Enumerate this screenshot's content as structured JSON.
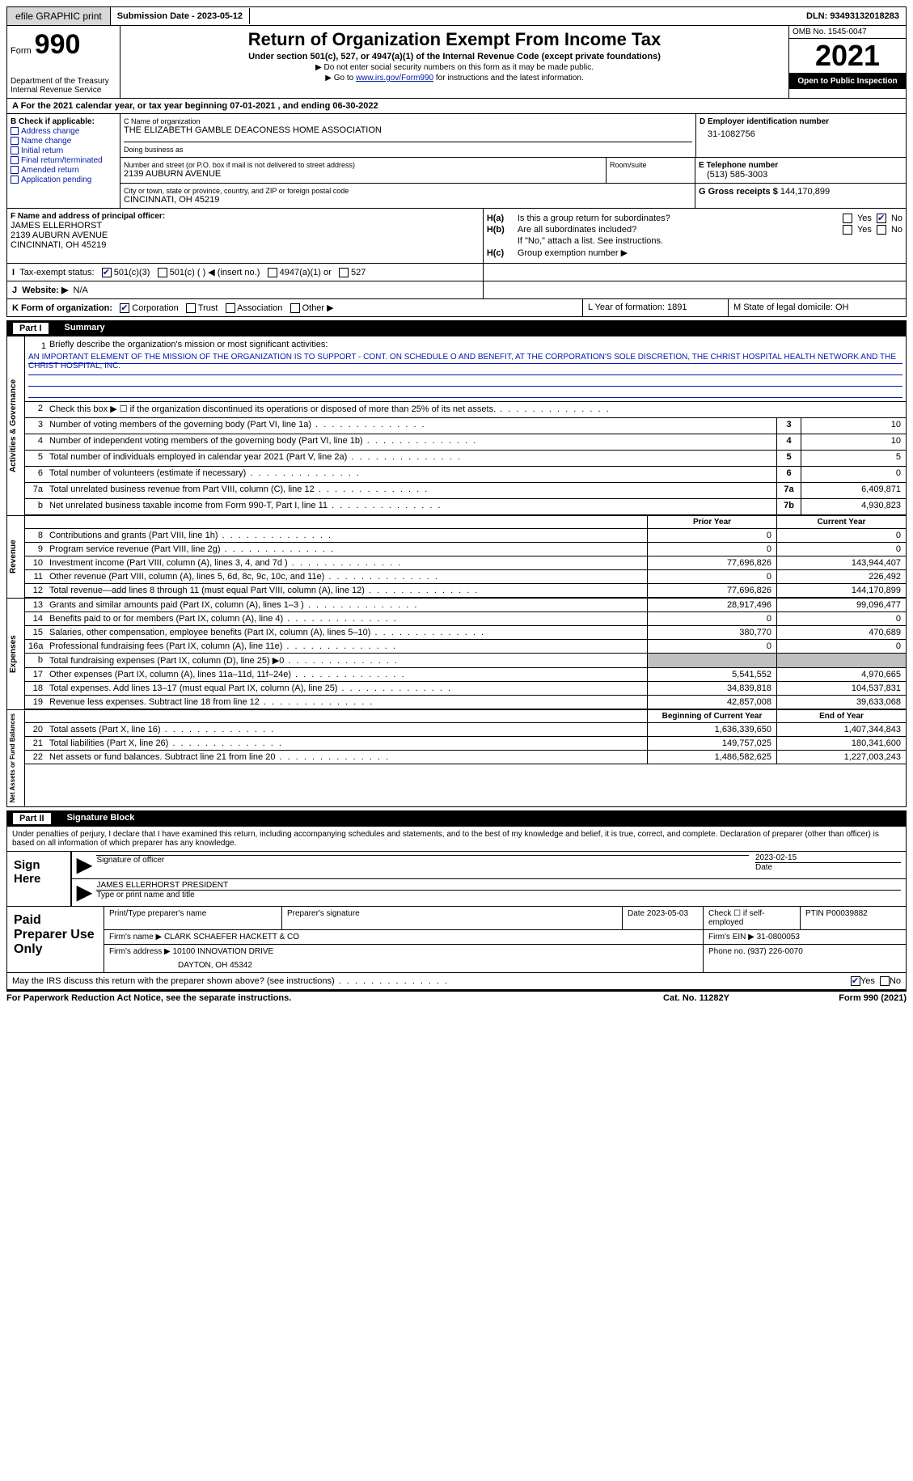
{
  "topbar": {
    "efile": "efile GRAPHIC print",
    "sub_label": "Submission Date - 2023-05-12",
    "dln": "DLN: 93493132018283"
  },
  "header": {
    "form_word": "Form",
    "form_num": "990",
    "dept": "Department of the Treasury Internal Revenue Service",
    "title": "Return of Organization Exempt From Income Tax",
    "subtitle": "Under section 501(c), 527, or 4947(a)(1) of the Internal Revenue Code (except private foundations)",
    "note1": "▶ Do not enter social security numbers on this form as it may be made public.",
    "note2_prefix": "▶ Go to ",
    "note2_link": "www.irs.gov/Form990",
    "note2_suffix": " for instructions and the latest information.",
    "omb": "OMB No. 1545-0047",
    "year": "2021",
    "open": "Open to Public Inspection"
  },
  "period": "A  For the 2021 calendar year, or tax year beginning 07-01-2021   , and ending 06-30-2022",
  "colB": {
    "title": "B Check if applicable:",
    "items": [
      "Address change",
      "Name change",
      "Initial return",
      "Final return/terminated",
      "Amended return",
      "Application pending"
    ]
  },
  "org": {
    "name_lbl": "C Name of organization",
    "name": "THE ELIZABETH GAMBLE DEACONESS HOME ASSOCIATION",
    "dba_lbl": "Doing business as",
    "addr_lbl": "Number and street (or P.O. box if mail is not delivered to street address)",
    "addr": "2139 AUBURN AVENUE",
    "room_lbl": "Room/suite",
    "city_lbl": "City or town, state or province, country, and ZIP or foreign postal code",
    "city": "CINCINNATI, OH  45219",
    "ein_lbl": "D Employer identification number",
    "ein": "31-1082756",
    "tel_lbl": "E Telephone number",
    "tel": "(513) 585-3003",
    "gross_lbl": "G Gross receipts $",
    "gross": "144,170,899"
  },
  "officer": {
    "lbl": "F Name and address of principal officer:",
    "name": "JAMES ELLERHORST",
    "addr1": "2139 AUBURN AVENUE",
    "addr2": "CINCINNATI, OH  45219"
  },
  "H": {
    "a": "Is this a group return for subordinates?",
    "b": "Are all subordinates included?",
    "note": "If \"No,\" attach a list. See instructions.",
    "c": "Group exemption number ▶"
  },
  "tax_status": "Tax-exempt status:",
  "status_opts": [
    "501(c)(3)",
    "501(c) (  ) ◀ (insert no.)",
    "4947(a)(1) or",
    "527"
  ],
  "website_lbl": "Website: ▶",
  "website_val": "N/A",
  "K": {
    "lbl": "K Form of organization:",
    "opts": [
      "Corporation",
      "Trust",
      "Association",
      "Other ▶"
    ],
    "L": "L Year of formation: 1891",
    "M": "M State of legal domicile: OH"
  },
  "part1": {
    "num": "Part I",
    "title": "Summary"
  },
  "mission": {
    "lbl": "Briefly describe the organization's mission or most significant activities:",
    "text": "AN IMPORTANT ELEMENT OF THE MISSION OF THE ORGANIZATION IS TO SUPPORT - CONT. ON SCHEDULE O AND BENEFIT, AT THE CORPORATION'S SOLE DISCRETION, THE CHRIST HOSPITAL HEALTH NETWORK AND THE CHRIST HOSPITAL, INC."
  },
  "gov_rows": [
    {
      "n": "2",
      "label": "Check this box ▶ ☐  if the organization discontinued its operations or disposed of more than 25% of its net assets.",
      "box": "",
      "val": ""
    },
    {
      "n": "3",
      "label": "Number of voting members of the governing body (Part VI, line 1a)",
      "box": "3",
      "val": "10"
    },
    {
      "n": "4",
      "label": "Number of independent voting members of the governing body (Part VI, line 1b)",
      "box": "4",
      "val": "10"
    },
    {
      "n": "5",
      "label": "Total number of individuals employed in calendar year 2021 (Part V, line 2a)",
      "box": "5",
      "val": "5"
    },
    {
      "n": "6",
      "label": "Total number of volunteers (estimate if necessary)",
      "box": "6",
      "val": "0"
    },
    {
      "n": "7a",
      "label": "Total unrelated business revenue from Part VIII, column (C), line 12",
      "box": "7a",
      "val": "6,409,871"
    },
    {
      "n": " b",
      "label": "Net unrelated business taxable income from Form 990-T, Part I, line 11",
      "box": "7b",
      "val": "4,930,823"
    }
  ],
  "rev_hdr": {
    "prior": "Prior Year",
    "current": "Current Year"
  },
  "revenue": [
    {
      "n": "8",
      "label": "Contributions and grants (Part VIII, line 1h)",
      "p": "0",
      "c": "0"
    },
    {
      "n": "9",
      "label": "Program service revenue (Part VIII, line 2g)",
      "p": "0",
      "c": "0"
    },
    {
      "n": "10",
      "label": "Investment income (Part VIII, column (A), lines 3, 4, and 7d )",
      "p": "77,696,826",
      "c": "143,944,407"
    },
    {
      "n": "11",
      "label": "Other revenue (Part VIII, column (A), lines 5, 6d, 8c, 9c, 10c, and 11e)",
      "p": "0",
      "c": "226,492"
    },
    {
      "n": "12",
      "label": "Total revenue—add lines 8 through 11 (must equal Part VIII, column (A), line 12)",
      "p": "77,696,826",
      "c": "144,170,899"
    }
  ],
  "expenses": [
    {
      "n": "13",
      "label": "Grants and similar amounts paid (Part IX, column (A), lines 1–3 )",
      "p": "28,917,496",
      "c": "99,096,477"
    },
    {
      "n": "14",
      "label": "Benefits paid to or for members (Part IX, column (A), line 4)",
      "p": "0",
      "c": "0"
    },
    {
      "n": "15",
      "label": "Salaries, other compensation, employee benefits (Part IX, column (A), lines 5–10)",
      "p": "380,770",
      "c": "470,689"
    },
    {
      "n": "16a",
      "label": "Professional fundraising fees (Part IX, column (A), line 11e)",
      "p": "0",
      "c": "0"
    },
    {
      "n": "b",
      "label": "Total fundraising expenses (Part IX, column (D), line 25) ▶0",
      "p": "SHADE",
      "c": "SHADE"
    },
    {
      "n": "17",
      "label": "Other expenses (Part IX, column (A), lines 11a–11d, 11f–24e)",
      "p": "5,541,552",
      "c": "4,970,665"
    },
    {
      "n": "18",
      "label": "Total expenses. Add lines 13–17 (must equal Part IX, column (A), line 25)",
      "p": "34,839,818",
      "c": "104,537,831"
    },
    {
      "n": "19",
      "label": "Revenue less expenses. Subtract line 18 from line 12",
      "p": "42,857,008",
      "c": "39,633,068"
    }
  ],
  "net_hdr": {
    "begin": "Beginning of Current Year",
    "end": "End of Year"
  },
  "net": [
    {
      "n": "20",
      "label": "Total assets (Part X, line 16)",
      "p": "1,636,339,650",
      "c": "1,407,344,843"
    },
    {
      "n": "21",
      "label": "Total liabilities (Part X, line 26)",
      "p": "149,757,025",
      "c": "180,341,600"
    },
    {
      "n": "22",
      "label": "Net assets or fund balances. Subtract line 21 from line 20",
      "p": "1,486,582,625",
      "c": "1,227,003,243"
    }
  ],
  "vlabels": {
    "gov": "Activities & Governance",
    "rev": "Revenue",
    "exp": "Expenses",
    "net": "Net Assets or Fund Balances"
  },
  "part2": {
    "num": "Part II",
    "title": "Signature Block"
  },
  "perjury": "Under penalties of perjury, I declare that I have examined this return, including accompanying schedules and statements, and to the best of my knowledge and belief, it is true, correct, and complete. Declaration of preparer (other than officer) is based on all information of which preparer has any knowledge.",
  "sign": {
    "side": "Sign Here",
    "sig_of": "Signature of officer",
    "date": "2023-02-15",
    "date_lbl": "Date",
    "name": "JAMES ELLERHORST  PRESIDENT",
    "name_lbl": "Type or print name and title"
  },
  "prep": {
    "side": "Paid Preparer Use Only",
    "r1": {
      "a": "Print/Type preparer's name",
      "b": "Preparer's signature",
      "c": "Date 2023-05-03",
      "d": "Check ☐ if self-employed",
      "e": "PTIN P00039882"
    },
    "r2": {
      "a": "Firm's name     ▶ CLARK SCHAEFER HACKETT & CO",
      "b": "Firm's EIN ▶ 31-0800053"
    },
    "r3": {
      "a": "Firm's address ▶ 10100 INNOVATION DRIVE",
      "b": "Phone no. (937) 226-0070"
    },
    "r3b": "DAYTON, OH  45342"
  },
  "discuss": "May the IRS discuss this return with the preparer shown above? (see instructions)",
  "footer": {
    "left": "For Paperwork Reduction Act Notice, see the separate instructions.",
    "mid": "Cat. No. 11282Y",
    "right": "Form 990 (2021)"
  },
  "colors": {
    "link": "#0018a8",
    "shade": "#bfbfbf"
  }
}
